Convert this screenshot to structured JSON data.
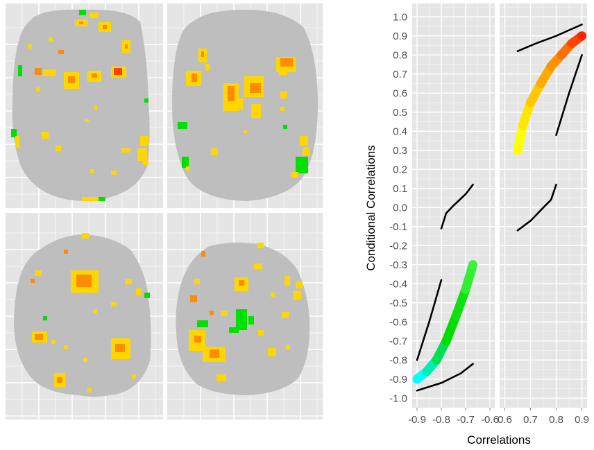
{
  "brain_maps": {
    "panels": [
      {
        "name": "brain-panel-top-left"
      },
      {
        "name": "brain-panel-top-right"
      },
      {
        "name": "brain-panel-bottom-left"
      },
      {
        "name": "brain-panel-bottom-right"
      }
    ],
    "colors": {
      "panel_bg": "#e5e5e5",
      "brain": "#bebebe",
      "low": "#ffff00",
      "mid": "#ffa500",
      "high": "#ff4500",
      "negative": "#00e000"
    }
  },
  "chart_data": {
    "type": "scatter",
    "facets": 2,
    "xlabel": "Correlations",
    "ylabel": "Conditional Correlations",
    "ylim": [
      -1.05,
      1.07
    ],
    "yticks": [
      "1.0",
      "0.9",
      "0.8",
      "0.7",
      "0.6",
      "0.5",
      "0.4",
      "0.3",
      "0.2",
      "0.1",
      "0.0",
      "-0.1",
      "-0.2",
      "-0.3",
      "-0.4",
      "-0.5",
      "-0.6",
      "-0.7",
      "-0.8",
      "-0.9",
      "-1.0"
    ],
    "grid": true,
    "panels": [
      {
        "xlim": [
          -0.92,
          -0.58
        ],
        "xticks": [
          "-0.9",
          "-0.8",
          "-0.7",
          "-0.6"
        ],
        "colored_series": {
          "x": [
            -0.9,
            -0.86,
            -0.82,
            -0.78,
            -0.74,
            -0.7,
            -0.67
          ],
          "y": [
            -0.9,
            -0.86,
            -0.8,
            -0.7,
            -0.57,
            -0.43,
            -0.3
          ],
          "colors": [
            "#00ffff",
            "#00eeb0",
            "#00e050",
            "#00dc00",
            "#10e010",
            "#30ee30",
            "#40f040"
          ]
        },
        "black_series": [
          {
            "x": [
              -0.9,
              -0.85,
              -0.8
            ],
            "y": [
              -0.8,
              -0.6,
              -0.38
            ]
          },
          {
            "x": [
              -0.8,
              -0.78,
              -0.75,
              -0.7,
              -0.67
            ],
            "y": [
              -0.11,
              -0.03,
              0.01,
              0.07,
              0.12
            ]
          },
          {
            "x": [
              -0.9,
              -0.8,
              -0.72,
              -0.67
            ],
            "y": [
              -0.96,
              -0.92,
              -0.87,
              -0.82
            ]
          }
        ]
      },
      {
        "xlim": [
          0.58,
          0.92
        ],
        "xticks": [
          "0.6",
          "0.7",
          "0.8",
          "0.9"
        ],
        "colored_series": {
          "x": [
            0.65,
            0.67,
            0.7,
            0.74,
            0.78,
            0.82,
            0.86,
            0.9
          ],
          "y": [
            0.3,
            0.43,
            0.55,
            0.65,
            0.74,
            0.8,
            0.86,
            0.9
          ],
          "colors": [
            "#ffff00",
            "#ffe600",
            "#ffc800",
            "#ffaa00",
            "#ff9000",
            "#ff7000",
            "#ff4500",
            "#ff2000"
          ]
        },
        "black_series": [
          {
            "x": [
              0.65,
              0.72,
              0.8,
              0.85,
              0.9
            ],
            "y": [
              0.82,
              0.86,
              0.9,
              0.93,
              0.96
            ]
          },
          {
            "x": [
              0.8,
              0.85,
              0.9
            ],
            "y": [
              0.38,
              0.6,
              0.8
            ]
          },
          {
            "x": [
              0.65,
              0.7,
              0.75,
              0.78,
              0.8
            ],
            "y": [
              -0.12,
              -0.07,
              0.0,
              0.04,
              0.12
            ]
          }
        ]
      }
    ]
  }
}
